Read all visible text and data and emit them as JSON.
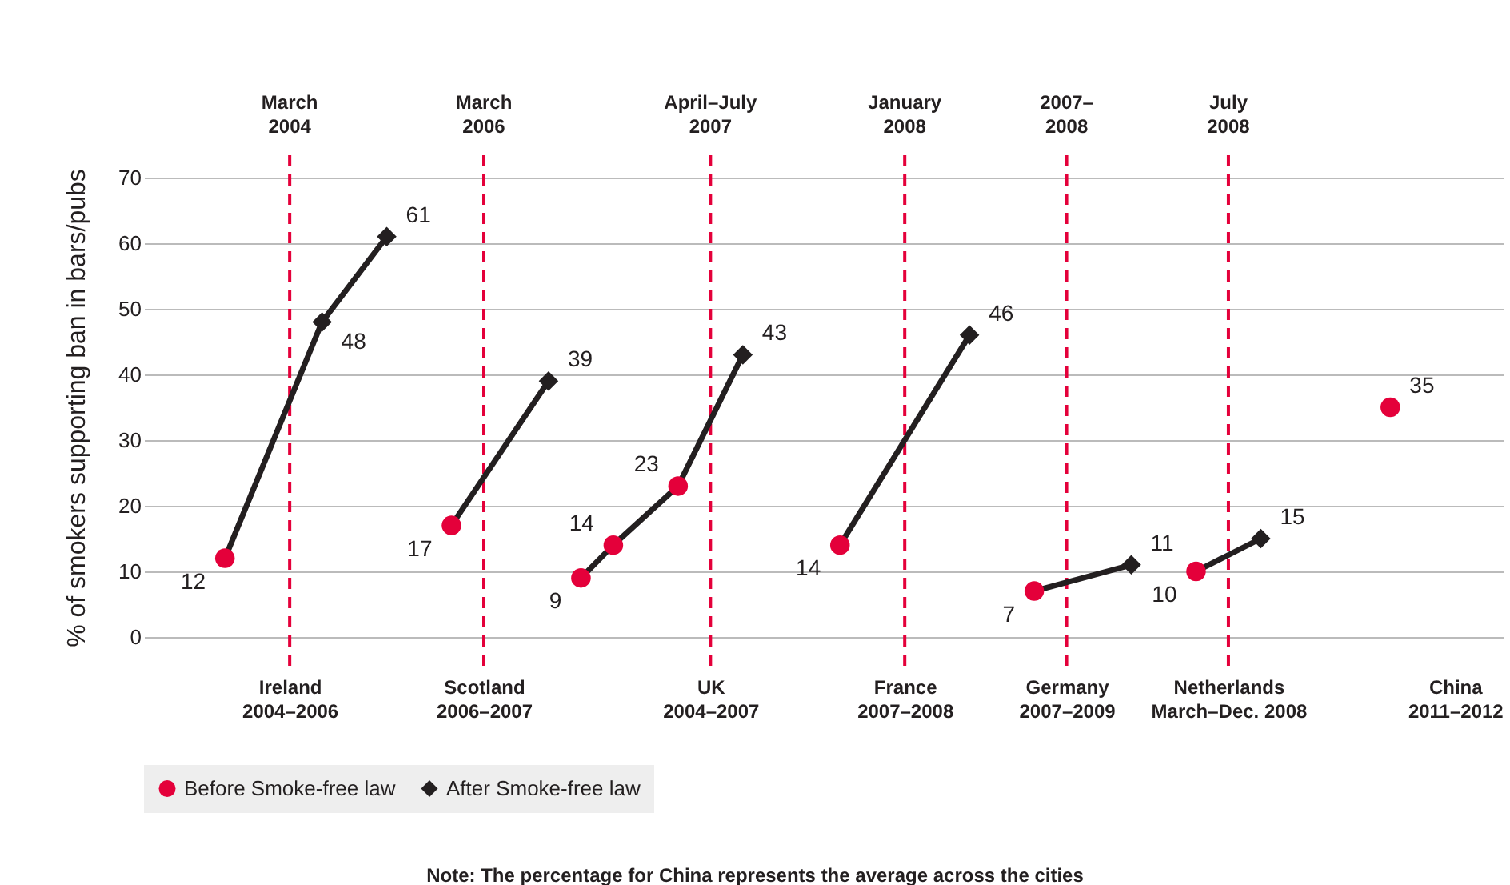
{
  "chart_data": {
    "type": "scatter",
    "ylabel": "% of smokers supporting ban in bars/pubs",
    "categories": [
      null,
      null,
      null,
      null,
      "Ireland\n2004–2006",
      null,
      null,
      null,
      null,
      null,
      "Scotland\n2006–2007",
      null,
      null,
      null,
      null,
      null,
      null,
      "UK\n2004–2007",
      null,
      null,
      null,
      null,
      null,
      "France\n2007–2008",
      null,
      null,
      null,
      null,
      "Germany\n2007–2009",
      null,
      null,
      null,
      null,
      "Netherlands\nMarch–Dec. 2008",
      null,
      null,
      null,
      null,
      null,
      null,
      "China\n2011–2012",
      null
    ],
    "ylim": [
      0,
      70
    ],
    "yticks": [
      0,
      10,
      20,
      30,
      40,
      50,
      60,
      70
    ],
    "grid": "y",
    "legend": "bottom",
    "ref_lines": [
      {
        "axis": "x",
        "value": "Ireland\n2004–2006",
        "label": "March\n2004",
        "color": "#e4003a",
        "line_style": "dashed"
      },
      {
        "axis": "x",
        "value": "Scotland\n2006–2007",
        "label": "March\n2006",
        "color": "#e4003a",
        "line_style": "dashed"
      },
      {
        "axis": "x",
        "value": "UK\n2004–2007",
        "label": "April–July\n2007",
        "color": "#e4003a",
        "line_style": "dashed"
      },
      {
        "axis": "x",
        "value": "France\n2007–2008",
        "label": "January\n2008",
        "color": "#e4003a",
        "line_style": "dashed"
      },
      {
        "axis": "x",
        "value": "Germany\n2007–2009",
        "label": "2007–\n2008",
        "color": "#e4003a",
        "line_style": "dashed"
      },
      {
        "axis": "x",
        "value": "Netherlands\nMarch–Dec. 2008",
        "label": "July\n2008",
        "color": "#e4003a",
        "line_style": "dashed"
      }
    ],
    "series": [
      {
        "type": "line",
        "color": "#231f20",
        "marker": "none",
        "values": [
          null,
          null,
          12,
          null,
          null,
          48,
          null,
          61,
          null,
          null,
          null,
          null,
          null,
          null,
          null,
          null,
          null,
          null,
          null,
          null,
          null,
          null,
          null,
          null,
          null,
          null,
          null,
          null,
          null,
          null,
          null,
          null,
          null,
          null,
          null,
          null,
          null,
          null,
          null,
          null,
          null,
          null
        ]
      },
      {
        "type": "line",
        "color": "#231f20",
        "marker": "none",
        "values": [
          null,
          null,
          null,
          null,
          null,
          null,
          null,
          null,
          null,
          17,
          null,
          null,
          39,
          null,
          null,
          null,
          null,
          null,
          null,
          null,
          null,
          null,
          null,
          null,
          null,
          null,
          null,
          null,
          null,
          null,
          null,
          null,
          null,
          null,
          null,
          null,
          null,
          null,
          null,
          null,
          null,
          null
        ]
      },
      {
        "type": "line",
        "color": "#231f20",
        "marker": "none",
        "values": [
          null,
          null,
          null,
          null,
          null,
          null,
          null,
          null,
          null,
          null,
          null,
          null,
          null,
          9,
          14,
          null,
          23,
          null,
          43,
          null,
          null,
          null,
          null,
          null,
          null,
          null,
          null,
          null,
          null,
          null,
          null,
          null,
          null,
          null,
          null,
          null,
          null,
          null,
          null,
          null,
          null,
          null
        ]
      },
      {
        "type": "line",
        "color": "#231f20",
        "marker": "none",
        "values": [
          null,
          null,
          null,
          null,
          null,
          null,
          null,
          null,
          null,
          null,
          null,
          null,
          null,
          null,
          null,
          null,
          null,
          null,
          null,
          null,
          null,
          14,
          null,
          null,
          null,
          46,
          null,
          null,
          null,
          null,
          null,
          null,
          null,
          null,
          null,
          null,
          null,
          null,
          null,
          null,
          null,
          null
        ]
      },
      {
        "type": "line",
        "color": "#231f20",
        "marker": "none",
        "values": [
          null,
          null,
          null,
          null,
          null,
          null,
          null,
          null,
          null,
          null,
          null,
          null,
          null,
          null,
          null,
          null,
          null,
          null,
          null,
          null,
          null,
          null,
          null,
          null,
          null,
          null,
          null,
          7,
          null,
          null,
          11,
          null,
          null,
          null,
          null,
          null,
          null,
          null,
          null,
          null,
          null,
          null
        ]
      },
      {
        "type": "line",
        "color": "#231f20",
        "marker": "none",
        "values": [
          null,
          null,
          null,
          null,
          null,
          null,
          null,
          null,
          null,
          null,
          null,
          null,
          null,
          null,
          null,
          null,
          null,
          null,
          null,
          null,
          null,
          null,
          null,
          null,
          null,
          null,
          null,
          null,
          null,
          null,
          null,
          null,
          10,
          null,
          15,
          null,
          null,
          null,
          null,
          null,
          null,
          null
        ]
      },
      {
        "type": "scatter",
        "name": "Before Smoke-free law",
        "color": "#e4003a",
        "marker": "circle",
        "values": [
          null,
          null,
          12,
          null,
          null,
          null,
          null,
          null,
          null,
          17,
          null,
          null,
          null,
          9,
          14,
          null,
          23,
          null,
          null,
          null,
          null,
          14,
          null,
          null,
          null,
          null,
          null,
          7,
          null,
          null,
          null,
          null,
          10,
          null,
          null,
          null,
          null,
          null,
          35,
          null,
          null,
          null
        ],
        "value_labels": [
          null,
          null,
          "12",
          null,
          null,
          null,
          null,
          null,
          null,
          "17",
          null,
          null,
          null,
          "9",
          "14",
          null,
          "23",
          null,
          null,
          null,
          null,
          "14",
          null,
          null,
          null,
          null,
          null,
          "7",
          null,
          null,
          null,
          null,
          "10",
          null,
          null,
          null,
          null,
          null,
          "35",
          null,
          null,
          null
        ]
      },
      {
        "type": "scatter",
        "name": "After Smoke-free law",
        "color": "#231f20",
        "marker": "diamond",
        "values": [
          null,
          null,
          null,
          null,
          null,
          48,
          null,
          61,
          null,
          null,
          null,
          null,
          39,
          null,
          null,
          null,
          null,
          null,
          43,
          null,
          null,
          null,
          null,
          null,
          null,
          46,
          null,
          null,
          null,
          null,
          11,
          null,
          null,
          null,
          15,
          null,
          null,
          null,
          null,
          null,
          null,
          null
        ],
        "value_labels": [
          null,
          null,
          null,
          null,
          null,
          "48",
          null,
          "61",
          null,
          null,
          null,
          null,
          "39",
          null,
          null,
          null,
          null,
          null,
          "43",
          null,
          null,
          null,
          null,
          null,
          null,
          "46",
          null,
          null,
          null,
          null,
          "11",
          null,
          null,
          null,
          "15",
          null,
          null,
          null,
          null,
          null,
          null,
          null
        ]
      }
    ],
    "annotations": [
      "Note: The percentage for China represents the average across the cities"
    ]
  }
}
